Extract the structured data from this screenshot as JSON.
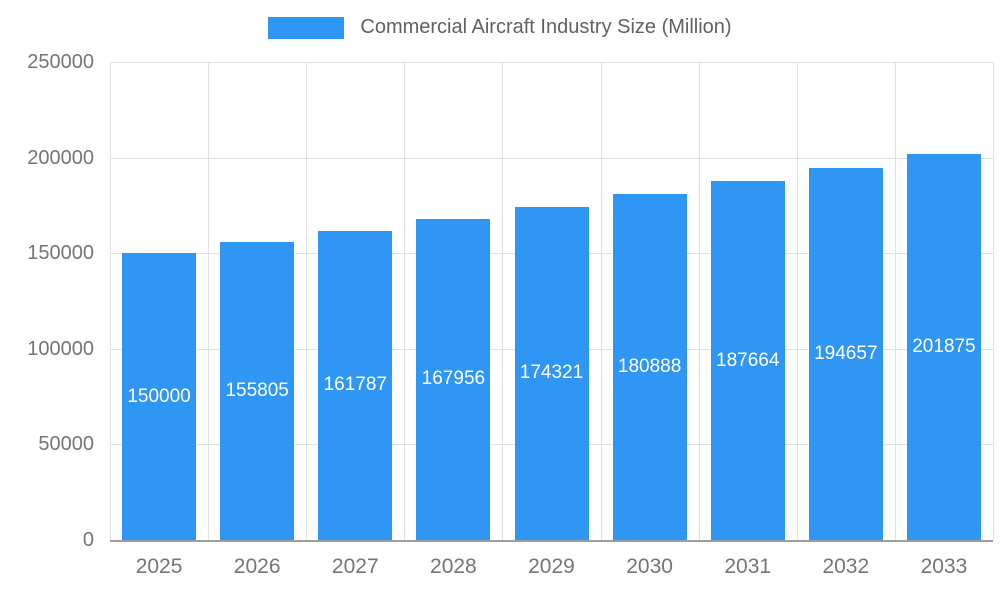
{
  "colors": {
    "bar": "#2F96F3",
    "grid": "#e0e0e0",
    "axis_line": "#9e9e9e",
    "tick_text": "#757575",
    "legend_text": "#616161",
    "bar_label_text": "#ffffff",
    "background": "#ffffff"
  },
  "legend": {
    "label": "Commercial Aircraft Industry Size (Million)"
  },
  "chart_data": {
    "type": "bar",
    "title": "Commercial Aircraft Industry Size (Million)",
    "xlabel": "",
    "ylabel": "",
    "categories": [
      "2025",
      "2026",
      "2027",
      "2028",
      "2029",
      "2030",
      "2031",
      "2032",
      "2033"
    ],
    "values": [
      150000,
      155805,
      161787,
      167956,
      174321,
      180888,
      187664,
      194657,
      201875
    ],
    "bar_labels": [
      "150000",
      "155805",
      "161787",
      "167956",
      "174321",
      "180888",
      "187664",
      "194657",
      "201875"
    ],
    "yticks": [
      0,
      50000,
      100000,
      150000,
      200000,
      250000
    ],
    "ytick_labels": [
      "0",
      "50000",
      "100000",
      "150000",
      "200000",
      "250000"
    ],
    "ylim": [
      0,
      250000
    ],
    "grid": true,
    "legend_position": "top"
  }
}
